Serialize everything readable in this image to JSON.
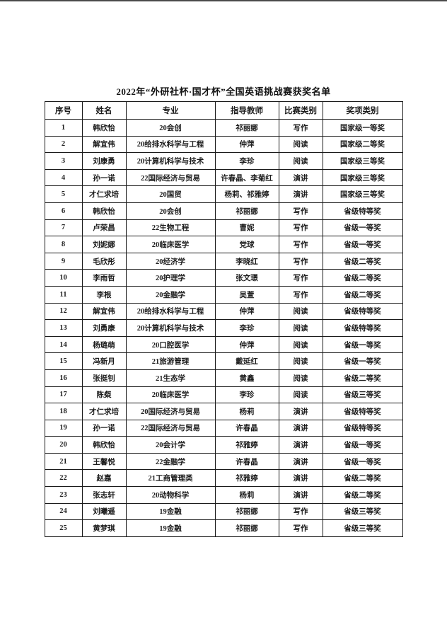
{
  "page": {
    "title": "2022年“外研社杯·国才杯”全国英语挑战赛获奖名单"
  },
  "table": {
    "headers": [
      "序号",
      "姓名",
      "专业",
      "指导教师",
      "比赛类别",
      "奖项类别"
    ],
    "rows": [
      [
        "1",
        "韩欣怡",
        "20会创",
        "祁丽娜",
        "写作",
        "国家级一等奖"
      ],
      [
        "2",
        "解宜伟",
        "20给排水科学与工程",
        "仲萍",
        "阅读",
        "国家级二等奖"
      ],
      [
        "3",
        "刘康勇",
        "20计算机科学与技术",
        "李珍",
        "阅读",
        "国家级三等奖"
      ],
      [
        "4",
        "孙一诺",
        "22国际经济与贸易",
        "许春晶、李菊红",
        "演讲",
        "国家级三等奖"
      ],
      [
        "5",
        "才仁求培",
        "20国贸",
        "杨莉、祁雅婷",
        "演讲",
        "国家级三等奖"
      ],
      [
        "6",
        "韩欣怡",
        "20会创",
        "祁丽娜",
        "写作",
        "省级特等奖"
      ],
      [
        "7",
        "卢荣昌",
        "22生物工程",
        "曹妮",
        "写作",
        "省级一等奖"
      ],
      [
        "8",
        "刘妮娜",
        "20临床医学",
        "党球",
        "写作",
        "省级一等奖"
      ],
      [
        "9",
        "毛欣彤",
        "20经济学",
        "李晓红",
        "写作",
        "省级二等奖"
      ],
      [
        "10",
        "李雨哲",
        "20护理学",
        "张文璟",
        "写作",
        "省级二等奖"
      ],
      [
        "11",
        "李根",
        "20金融学",
        "吴萱",
        "写作",
        "省级二等奖"
      ],
      [
        "12",
        "解宜伟",
        "20给排水科学与工程",
        "仲萍",
        "阅读",
        "省级特等奖"
      ],
      [
        "13",
        "刘勇康",
        "20计算机科学与技术",
        "李珍",
        "阅读",
        "省级特等奖"
      ],
      [
        "14",
        "杨璐萌",
        "20口腔医学",
        "仲萍",
        "阅读",
        "省级一等奖"
      ],
      [
        "15",
        "冯新月",
        "21旅游管理",
        "戴延红",
        "阅读",
        "省级一等奖"
      ],
      [
        "16",
        "张挺钊",
        "21生态学",
        "黄鑫",
        "阅读",
        "省级二等奖"
      ],
      [
        "17",
        "陈粲",
        "20临床医学",
        "李珍",
        "阅读",
        "省级三等奖"
      ],
      [
        "18",
        "才仁求培",
        "20国际经济与贸易",
        "杨莉",
        "演讲",
        "省级特等奖"
      ],
      [
        "19",
        "孙一诺",
        "22国际经济与贸易",
        "许春晶",
        "演讲",
        "省级特等奖"
      ],
      [
        "20",
        "韩欣怡",
        "20会计学",
        "祁雅婷",
        "演讲",
        "省级一等奖"
      ],
      [
        "21",
        "王馨悦",
        "22金融学",
        "许春晶",
        "演讲",
        "省级一等奖"
      ],
      [
        "22",
        "赵嘉",
        "21工商管理类",
        "祁雅婷",
        "演讲",
        "省级二等奖"
      ],
      [
        "23",
        "张志轩",
        "20动物科学",
        "杨莉",
        "演讲",
        "省级二等奖"
      ],
      [
        "24",
        "刘曦遥",
        "19金融",
        "祁丽娜",
        "写作",
        "省级三等奖"
      ],
      [
        "25",
        "黄梦琪",
        "19金融",
        "祁丽娜",
        "写作",
        "省级三等奖"
      ]
    ],
    "column_keys": [
      "no",
      "name",
      "major",
      "teacher",
      "category",
      "award"
    ]
  },
  "colors": {
    "page_bg": "#ffffff",
    "text": "#1c1c1c",
    "border": "#1a1a1a",
    "scan_edge": "#4a4a4a"
  }
}
